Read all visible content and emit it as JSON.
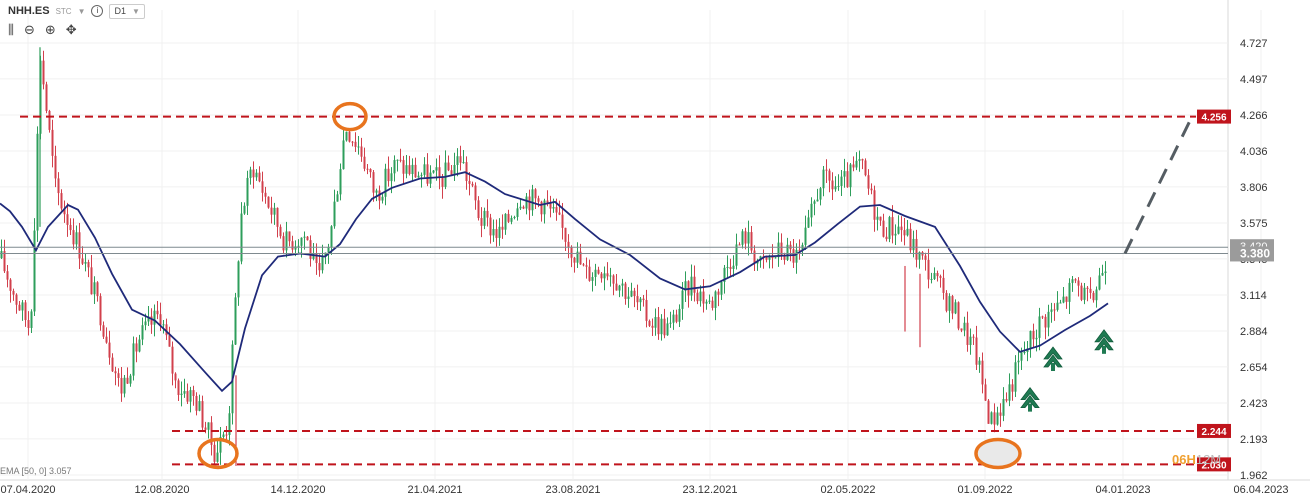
{
  "header": {
    "symbol": "NHH.ES",
    "tag": "STC",
    "info": "i",
    "timeframe": "D1"
  },
  "tools": [
    "candles-icon",
    "zoom-out-icon",
    "zoom-in-icon",
    "crosshair-icon"
  ],
  "ema_label": "EMA [50, 0] 3.057",
  "watermark": {
    "part1": "06H",
    "part2": "12M"
  },
  "colors": {
    "up": "#2e9e5b",
    "down": "#d2404c",
    "ema": "#1f2a7a",
    "level": "#c0141c",
    "ellipse": "#e8741e",
    "arrow": "#1f7a52",
    "axis_text": "#333333",
    "price_tag": "#9b9b9b"
  },
  "chart_data": {
    "type": "candlestick",
    "x_tick_labels": [
      "07.04.2020",
      "12.08.2020",
      "14.12.2020",
      "21.04.2021",
      "23.08.2021",
      "23.12.2021",
      "02.05.2022",
      "01.09.2022",
      "04.01.2023",
      "06.04.2023"
    ],
    "y_tick_labels": [
      "4.727",
      "4.497",
      "4.266",
      "4.036",
      "3.806",
      "3.575",
      "3.345",
      "3.114",
      "2.884",
      "2.654",
      "2.423",
      "2.193",
      "1.962"
    ],
    "ylim": [
      1.962,
      4.727
    ],
    "levels": [
      {
        "value": 4.256,
        "label": "4.256"
      },
      {
        "value": 2.244,
        "label": "2.244"
      },
      {
        "value": 2.03,
        "label": "2.030"
      }
    ],
    "current_price": {
      "value": 3.38,
      "label": "3.380"
    },
    "hidden_price_label": "3.420",
    "ema": {
      "name": "EMA [50, 0]",
      "value": 3.057
    },
    "ema_path": [
      [
        0,
        3.7
      ],
      [
        10,
        3.65
      ],
      [
        22,
        3.55
      ],
      [
        36,
        3.4
      ],
      [
        48,
        3.55
      ],
      [
        68,
        3.69
      ],
      [
        78,
        3.66
      ],
      [
        95,
        3.48
      ],
      [
        112,
        3.25
      ],
      [
        132,
        3.02
      ],
      [
        155,
        2.95
      ],
      [
        180,
        2.8
      ],
      [
        205,
        2.62
      ],
      [
        222,
        2.5
      ],
      [
        232,
        2.56
      ],
      [
        245,
        2.9
      ],
      [
        262,
        3.24
      ],
      [
        278,
        3.36
      ],
      [
        300,
        3.38
      ],
      [
        325,
        3.36
      ],
      [
        340,
        3.44
      ],
      [
        356,
        3.6
      ],
      [
        372,
        3.73
      ],
      [
        392,
        3.8
      ],
      [
        420,
        3.86
      ],
      [
        445,
        3.87
      ],
      [
        465,
        3.9
      ],
      [
        485,
        3.84
      ],
      [
        505,
        3.76
      ],
      [
        540,
        3.69
      ],
      [
        555,
        3.71
      ],
      [
        575,
        3.6
      ],
      [
        600,
        3.47
      ],
      [
        630,
        3.37
      ],
      [
        660,
        3.22
      ],
      [
        685,
        3.15
      ],
      [
        710,
        3.17
      ],
      [
        740,
        3.26
      ],
      [
        765,
        3.36
      ],
      [
        795,
        3.37
      ],
      [
        815,
        3.45
      ],
      [
        838,
        3.57
      ],
      [
        860,
        3.68
      ],
      [
        880,
        3.69
      ],
      [
        905,
        3.62
      ],
      [
        935,
        3.55
      ],
      [
        960,
        3.3
      ],
      [
        980,
        3.07
      ],
      [
        1000,
        2.88
      ],
      [
        1020,
        2.75
      ],
      [
        1040,
        2.79
      ],
      [
        1065,
        2.89
      ],
      [
        1090,
        2.98
      ],
      [
        1108,
        3.06
      ]
    ],
    "candle_anchors": [
      [
        0,
        3.35
      ],
      [
        15,
        3.1
      ],
      [
        30,
        2.9
      ],
      [
        40,
        4.65
      ],
      [
        55,
        3.8
      ],
      [
        80,
        3.4
      ],
      [
        100,
        3.0
      ],
      [
        120,
        2.5
      ],
      [
        140,
        2.85
      ],
      [
        160,
        3.0
      ],
      [
        175,
        2.55
      ],
      [
        195,
        2.45
      ],
      [
        215,
        2.1
      ],
      [
        228,
        2.3
      ],
      [
        240,
        3.6
      ],
      [
        252,
        3.95
      ],
      [
        268,
        3.7
      ],
      [
        285,
        3.45
      ],
      [
        305,
        3.5
      ],
      [
        318,
        3.2
      ],
      [
        330,
        3.5
      ],
      [
        345,
        4.2
      ],
      [
        360,
        4.05
      ],
      [
        375,
        3.75
      ],
      [
        395,
        3.95
      ],
      [
        415,
        3.9
      ],
      [
        440,
        3.85
      ],
      [
        460,
        4.0
      ],
      [
        480,
        3.6
      ],
      [
        500,
        3.5
      ],
      [
        520,
        3.75
      ],
      [
        545,
        3.7
      ],
      [
        565,
        3.5
      ],
      [
        585,
        3.25
      ],
      [
        605,
        3.3
      ],
      [
        625,
        3.15
      ],
      [
        650,
        2.95
      ],
      [
        670,
        2.9
      ],
      [
        690,
        3.2
      ],
      [
        710,
        3.05
      ],
      [
        730,
        3.35
      ],
      [
        745,
        3.5
      ],
      [
        760,
        3.3
      ],
      [
        780,
        3.4
      ],
      [
        800,
        3.35
      ],
      [
        820,
        3.85
      ],
      [
        840,
        3.8
      ],
      [
        860,
        3.95
      ],
      [
        880,
        3.55
      ],
      [
        900,
        3.55
      ],
      [
        915,
        3.4
      ],
      [
        935,
        3.2
      ],
      [
        955,
        3.0
      ],
      [
        975,
        2.75
      ],
      [
        990,
        2.3
      ],
      [
        1005,
        2.45
      ],
      [
        1020,
        2.7
      ],
      [
        1040,
        2.95
      ],
      [
        1060,
        3.05
      ],
      [
        1075,
        3.2
      ],
      [
        1090,
        3.05
      ],
      [
        1100,
        3.25
      ],
      [
        1107,
        3.38
      ]
    ],
    "circles": [
      {
        "x": 350,
        "value": 4.256,
        "fill": "none"
      },
      {
        "x": 218,
        "value": 2.1,
        "fill": "none"
      },
      {
        "x": 998,
        "value": 2.1,
        "fill": "#e9e9e9"
      }
    ],
    "arrows": [
      {
        "x": 1030,
        "value": 2.47
      },
      {
        "x": 1053,
        "value": 2.73
      },
      {
        "x": 1104,
        "value": 2.84
      }
    ],
    "projection": {
      "x0": 1125,
      "v0": 3.38,
      "x1": 1192,
      "v1": 4.256
    }
  }
}
